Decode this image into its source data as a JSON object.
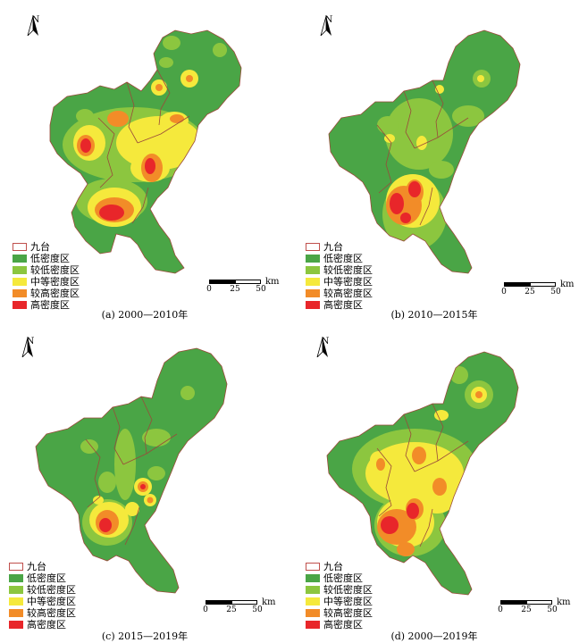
{
  "panels": [
    {
      "id": "a",
      "caption": "(a) 2000—2010年"
    },
    {
      "id": "b",
      "caption": "(b) 2010—2015年"
    },
    {
      "id": "c",
      "caption": "(c) 2015—2019年"
    },
    {
      "id": "d",
      "caption": "(d) 2000—2019年"
    }
  ],
  "north_label": "N",
  "legend": [
    {
      "label": "九台",
      "color": "#ffffff",
      "border": "#c0504d"
    },
    {
      "label": "低密度区",
      "color": "#4aa546"
    },
    {
      "label": "较低密度区",
      "color": "#8cc63f"
    },
    {
      "label": "中等密度区",
      "color": "#f5e93c"
    },
    {
      "label": "较高密度区",
      "color": "#f28c28"
    },
    {
      "label": "高密度区",
      "color": "#e8262a"
    }
  ],
  "scale": {
    "ticks": [
      "0",
      "25",
      "50"
    ],
    "unit": "km"
  },
  "colors": {
    "low": "#4aa546",
    "lowish": "#8cc63f",
    "medium": "#f5e93c",
    "highish": "#f28c28",
    "high": "#e8262a",
    "district_border": "#9a4a3a"
  }
}
